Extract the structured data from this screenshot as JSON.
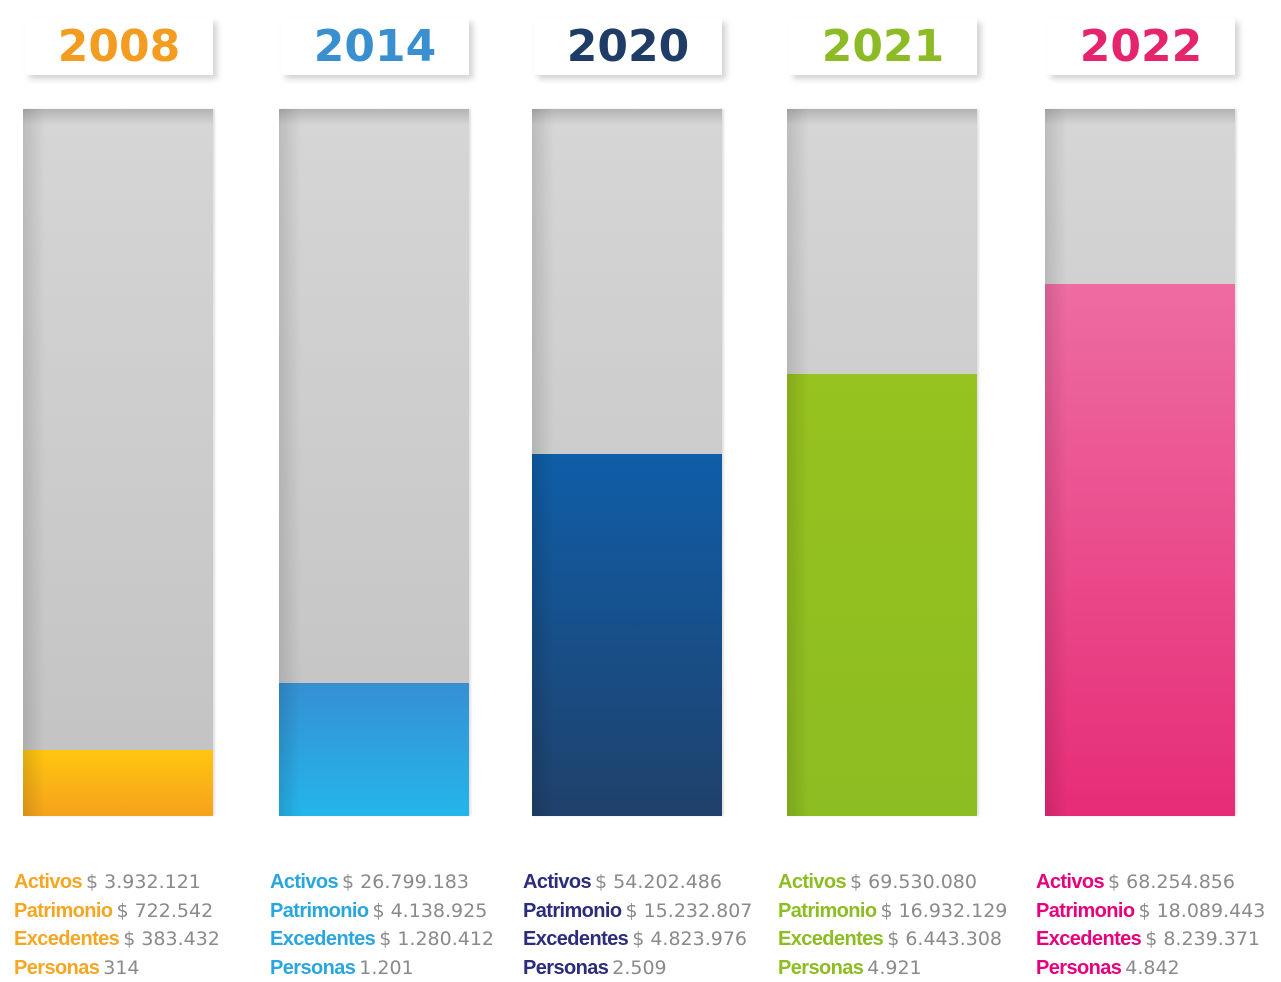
{
  "columns": [
    {
      "year": "2008",
      "items": [
        {
          "label": "Activos",
          "value": "$ 3.932.121"
        },
        {
          "label": "Patrimonio",
          "value": "$ 722.542"
        },
        {
          "label": "Excedentes",
          "value": "$ 383.432"
        },
        {
          "label": "Personas",
          "value": "314"
        }
      ]
    },
    {
      "year": "2014",
      "items": [
        {
          "label": "Activos",
          "value": "$ 26.799.183"
        },
        {
          "label": "Patrimonio",
          "value": "$ 4.138.925"
        },
        {
          "label": "Excedentes",
          "value": "$ 1.280.412"
        },
        {
          "label": "Personas",
          "value": "1.201"
        }
      ]
    },
    {
      "year": "2020",
      "items": [
        {
          "label": "Activos",
          "value": "$ 54.202.486"
        },
        {
          "label": "Patrimonio",
          "value": "$ 15.232.807"
        },
        {
          "label": "Excedentes",
          "value": "$ 4.823.976"
        },
        {
          "label": "Personas",
          "value": "2.509"
        }
      ]
    },
    {
      "year": "2021",
      "items": [
        {
          "label": "Activos",
          "value": "$ 69.530.080"
        },
        {
          "label": "Patrimonio",
          "value": "$ 16.932.129"
        },
        {
          "label": "Excedentes",
          "value": "$ 6.443.308"
        },
        {
          "label": "Personas",
          "value": "4.921"
        }
      ]
    },
    {
      "year": "2022",
      "items": [
        {
          "label": "Activos",
          "value": "$ 68.254.856"
        },
        {
          "label": "Patrimonio",
          "value": "$ 18.089.443"
        },
        {
          "label": "Excedentes",
          "value": "$ 8.239.371"
        },
        {
          "label": "Personas",
          "value": "4.842"
        }
      ]
    }
  ]
}
